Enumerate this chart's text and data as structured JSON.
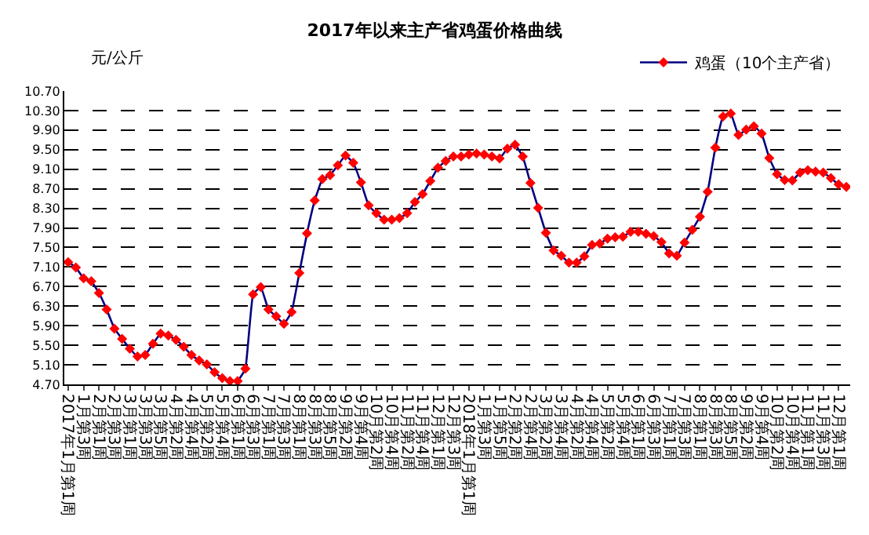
{
  "chart_data": {
    "type": "line",
    "title": "2017年以来主产省鸡蛋价格曲线",
    "ylabel": "元/公斤",
    "categories": [
      "2017年1月第1周",
      null,
      "1月第3周",
      null,
      "2月第1周",
      null,
      "2月第3周",
      null,
      "3月第1周",
      null,
      "3月第3周",
      null,
      "3月第5周",
      null,
      "4月第2周",
      null,
      "4月第4周",
      null,
      "5月第2周",
      null,
      "5月第4周",
      null,
      "6月第1周",
      null,
      "6月第3周",
      null,
      "7月第1周",
      null,
      "7月第3周",
      null,
      "8月第1周",
      null,
      "8月第3周",
      null,
      "8月第5周",
      null,
      "9月第2周",
      null,
      "9月第4周",
      null,
      "10月第2周",
      null,
      "10月第4周",
      null,
      "11月第2周",
      null,
      "11月第4周",
      null,
      "12月第1周",
      null,
      "12月第3周",
      null,
      "2018年1月第1周",
      null,
      "1月第3周",
      null,
      "1月第5周",
      null,
      "2月第2周",
      null,
      "2月第4周",
      null,
      "3月第2周",
      null,
      "3月第4周",
      null,
      "4月第2周",
      null,
      "4月第4周",
      null,
      "5月第2周",
      null,
      "5月第4周",
      null,
      "6月第1周",
      null,
      "6月第3周",
      null,
      "7月第1周",
      null,
      "7月第3周",
      null,
      "8月第1周",
      null,
      "8月第3周",
      null,
      "8月第5周",
      null,
      "9月第2周",
      null,
      "9月第4周",
      null,
      "10月第2周",
      null,
      "10月第4周",
      null,
      "11月第1周",
      null,
      "11月第3周",
      null,
      "12月第1周",
      null
    ],
    "series": [
      {
        "name": "鸡蛋（10个主产省）",
        "color": "#000080",
        "values": [
          7.2,
          7.09,
          6.87,
          6.81,
          6.57,
          6.23,
          5.84,
          5.63,
          5.43,
          5.27,
          5.3,
          5.53,
          5.74,
          5.7,
          5.61,
          5.47,
          5.3,
          5.19,
          5.11,
          4.95,
          4.83,
          4.77,
          4.77,
          5.02,
          6.54,
          6.69,
          6.23,
          6.09,
          5.94,
          6.18,
          6.98,
          7.79,
          8.46,
          8.9,
          8.98,
          9.18,
          9.38,
          9.23,
          8.83,
          8.36,
          8.2,
          8.07,
          8.07,
          8.1,
          8.2,
          8.43,
          8.59,
          8.86,
          9.13,
          9.27,
          9.36,
          9.36,
          9.4,
          9.42,
          9.4,
          9.36,
          9.32,
          9.52,
          9.6,
          9.36,
          8.82,
          8.31,
          7.8,
          7.44,
          7.33,
          7.19,
          7.19,
          7.32,
          7.55,
          7.58,
          7.68,
          7.71,
          7.72,
          7.82,
          7.82,
          7.78,
          7.73,
          7.61,
          7.38,
          7.33,
          7.6,
          7.86,
          8.13,
          8.64,
          9.54,
          10.18,
          10.24,
          9.8,
          9.91,
          9.98,
          9.83,
          9.33,
          9.0,
          8.88,
          8.87,
          9.03,
          9.08,
          9.05,
          9.03,
          8.92,
          8.79,
          8.74
        ]
      }
    ],
    "colors": [
      "#ff0000",
      "#ff0000",
      "#ff0000",
      "#ff0000",
      "#ff0000",
      "#ff0000",
      "#ff0000",
      "#ff0000",
      "#ff0000",
      "#ff0000",
      "#ff0000",
      "#ff0000",
      "#ff0000",
      "#ff0000",
      "#ff0000",
      "#ff0000",
      "#ff0000",
      "#ff0000",
      "#ff0000",
      "#ff0000",
      "#ff0000",
      "#ff0000",
      "#ff0000",
      "#ff0000",
      "#ff0000",
      "#ff0000",
      "#ff0000",
      "#ff0000",
      "#ff0000",
      "#ff0000",
      "#ff0000",
      "#ff0000",
      "#ff0000",
      "#ff0000",
      "#ff0000",
      "#ff0000",
      "#ff0000",
      "#ff0000",
      "#ff0000",
      "#ff0000",
      "#ff0000",
      "#ff0000",
      "#ff0000",
      "#ff0000",
      "#ff0000",
      "#ff0000",
      "#ff0000",
      "#ff0000",
      "#ff0000",
      "#ff0000",
      "#ff0000",
      "#ff0000",
      "#ff0000",
      "#ff0000",
      "#ff0000",
      "#ff0000",
      "#ff0000",
      "#ff0000",
      "#ff0000",
      "#ff0000",
      "#ff0000",
      "#ff0000",
      "#ff0000",
      "#ff0000",
      "#ff0000",
      "#ff0000",
      "#ff0000",
      "#ff0000",
      "#ff0000",
      "#ff0000",
      "#ff0000",
      "#ff0000",
      "#ff0000",
      "#ff0000",
      "#ff0000",
      "#ff0000",
      "#ff0000",
      "#ff0000",
      "#ff0000",
      "#ff0000",
      "#ff0000",
      "#ff0000",
      "#ff0000",
      "#ff0000",
      "#ff0000",
      "#ff0000",
      "#ff0000",
      "#ff0000",
      "#ff0000",
      "#ff0000",
      "#ff0000",
      "#ff0000",
      "#ff0000",
      "#ff0000",
      "#ff0000",
      "#ff0000",
      "#ff0000",
      "#ff0000",
      "#ff0000",
      "#ff0000",
      "#ff0000",
      "#ff0000"
    ],
    "ylim": [
      4.7,
      10.7
    ],
    "yticks": [
      {
        "value": 4.7,
        "label": "4.70"
      },
      {
        "value": 5.1,
        "label": "5.10"
      },
      {
        "value": 5.5,
        "label": "5.50"
      },
      {
        "value": 5.9,
        "label": "5.90"
      },
      {
        "value": 6.3,
        "label": "6.30"
      },
      {
        "value": 6.7,
        "label": "6.70"
      },
      {
        "value": 7.1,
        "label": "7.10"
      },
      {
        "value": 7.5,
        "label": "7.50"
      },
      {
        "value": 7.9,
        "label": "7.90"
      },
      {
        "value": 8.3,
        "label": "8.30"
      },
      {
        "value": 8.7,
        "label": "8.70"
      },
      {
        "value": 9.1,
        "label": "9.10"
      },
      {
        "value": 9.5,
        "label": "9.50"
      },
      {
        "value": 9.9,
        "label": "9.90"
      },
      {
        "value": 10.3,
        "label": "10.30"
      },
      {
        "value": 10.7,
        "label": "10.70"
      }
    ],
    "grid": "y",
    "legend": "top right",
    "marker": "diamond",
    "line_style": "solid"
  }
}
